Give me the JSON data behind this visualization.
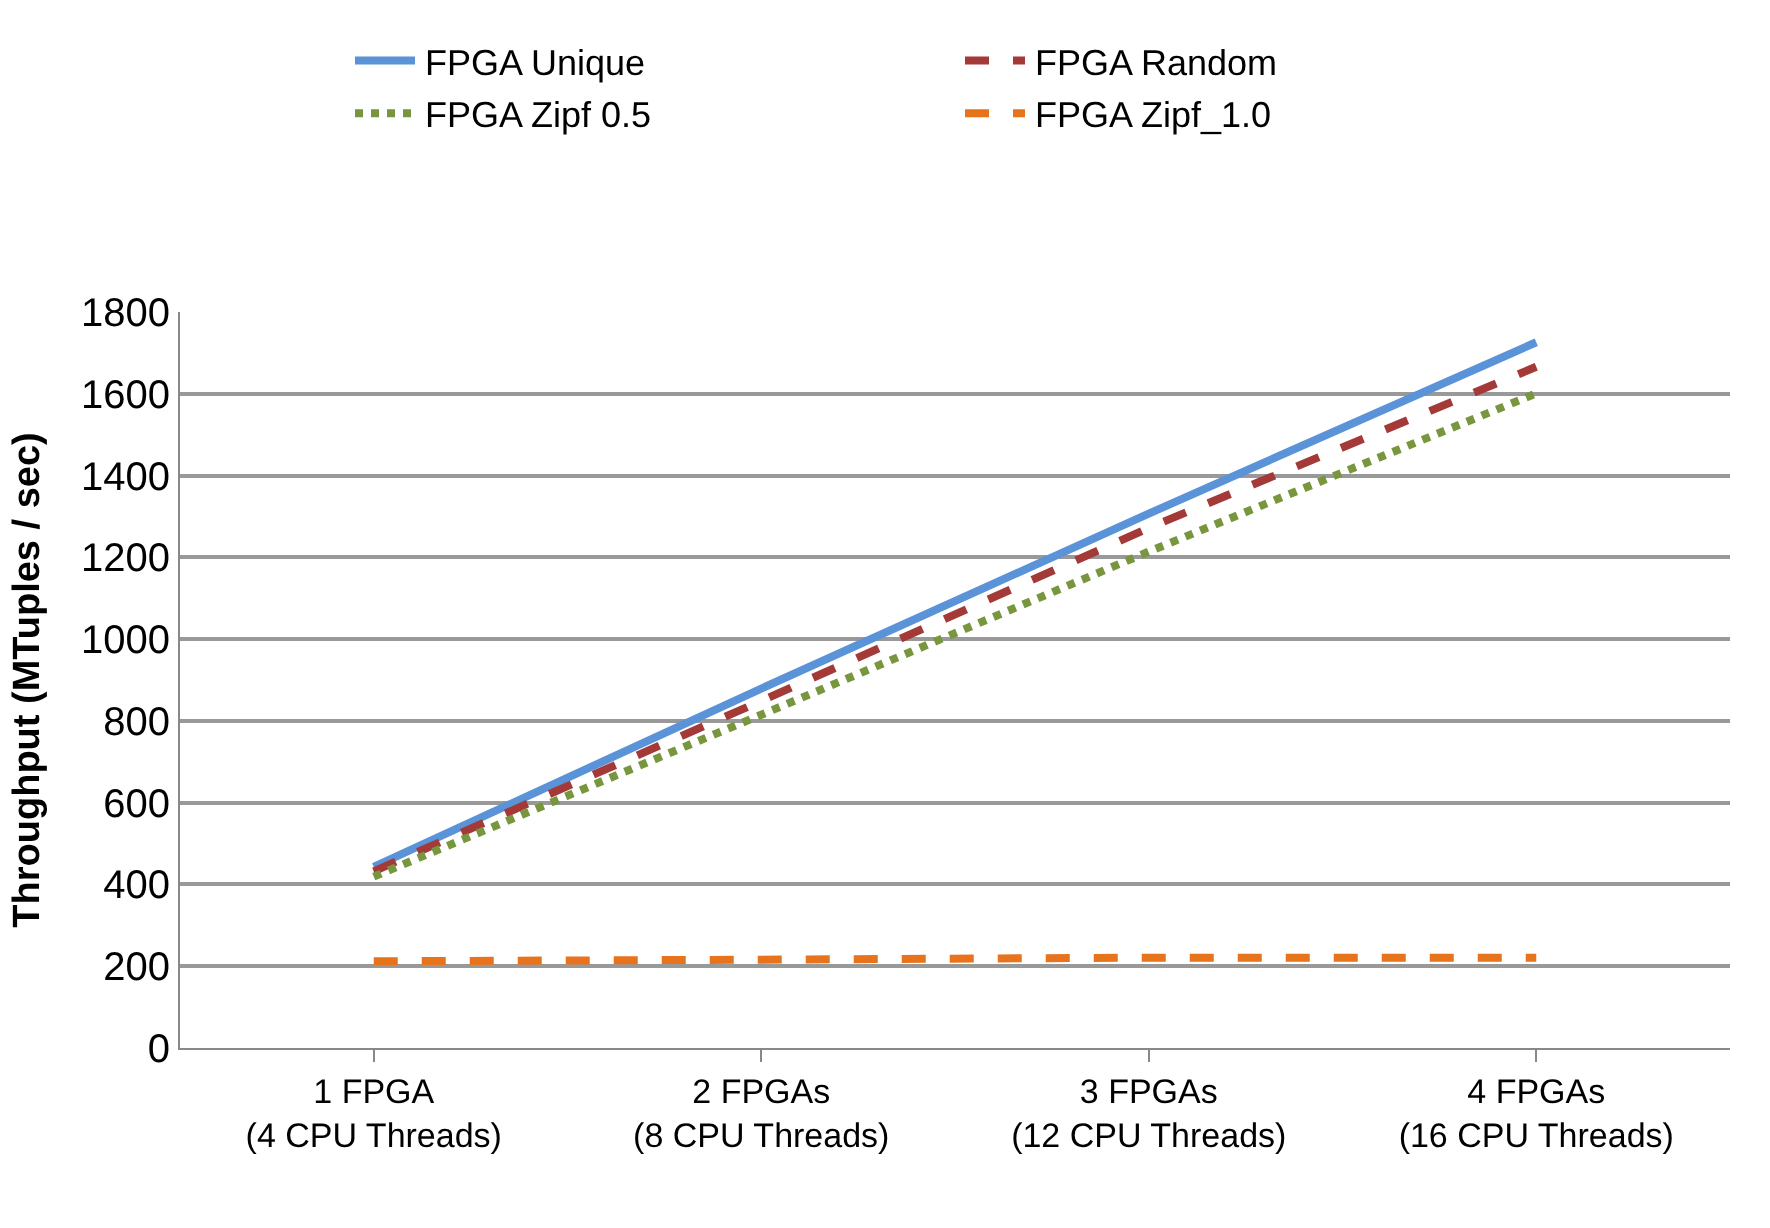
{
  "chart_data": {
    "type": "line",
    "ylabel": "Throughput (MTuples / sec)",
    "categories": [
      "1 FPGA\n(4 CPU Threads)",
      "2 FPGAs\n(8 CPU Threads)",
      "3 FPGAs\n(12 CPU Threads)",
      "4 FPGAs\n(16 CPU Threads)"
    ],
    "series": [
      {
        "name": "FPGA Unique",
        "color": "#5b93d8",
        "line_style": "solid",
        "values": [
          443,
          879,
          1307,
          1726
        ]
      },
      {
        "name": "FPGA Random",
        "color": "#a33a37",
        "line_style": "dashed",
        "values": [
          432,
          849,
          1272,
          1666
        ]
      },
      {
        "name": "FPGA Zipf 0.5",
        "color": "#77963d",
        "line_style": "dotted",
        "values": [
          419,
          815,
          1214,
          1601
        ]
      },
      {
        "name": "FPGA Zipf_1.0",
        "color": "#e8731c",
        "line_style": "dashed",
        "values": [
          212,
          216,
          221,
          221
        ]
      }
    ],
    "ylim": [
      0,
      1800
    ],
    "yticks": [
      0,
      200,
      400,
      600,
      800,
      1000,
      1200,
      1400,
      1600,
      1800
    ],
    "grid": "y",
    "legend": "top",
    "marker": "none"
  }
}
